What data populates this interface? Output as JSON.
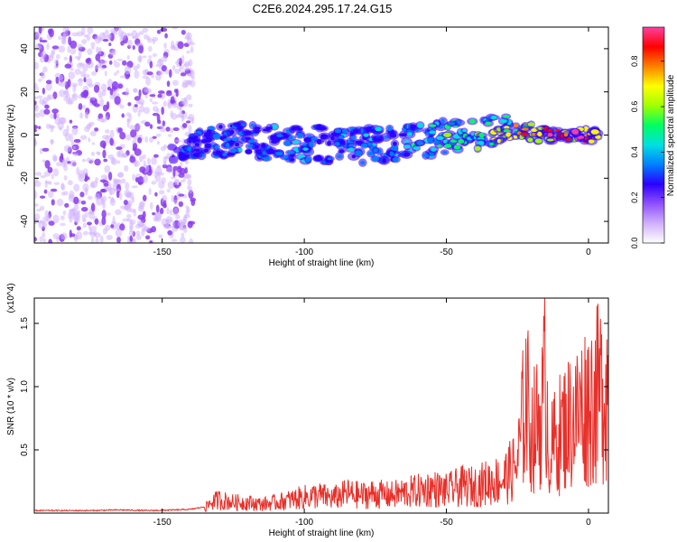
{
  "title": "C2E6.2024.295.17.24.G15",
  "colors": {
    "axis": "#000000",
    "snr_line": "#e8302a",
    "noise_purple": "#8a3cf0",
    "colormap": [
      "#ffffff",
      "#d0b0ff",
      "#9050ff",
      "#2a00ff",
      "#0080ff",
      "#00e0e0",
      "#00ff60",
      "#a0ff00",
      "#ffff00",
      "#ff8000",
      "#ff0000",
      "#ff40a0"
    ]
  },
  "chart_data": [
    {
      "type": "heatmap",
      "title": "C2E6.2024.295.17.24.G15",
      "xlabel": "Height of straight line (km)",
      "ylabel": "Frequency (Hz)",
      "xlim": [
        -195,
        7
      ],
      "ylim": [
        -50,
        50
      ],
      "xticks": [
        -150,
        -100,
        -50,
        0
      ],
      "xtick_labels": [
        "-150",
        "-100",
        "-50",
        "0"
      ],
      "yticks": [
        -40,
        -20,
        0,
        20,
        40
      ],
      "ytick_labels": [
        "-40",
        "-20",
        "0",
        "20",
        "40"
      ],
      "noise_region": {
        "x_from": -195,
        "x_to": -139,
        "y_from": -50,
        "y_to": 50
      },
      "ridge": {
        "x": [
          -147,
          -140,
          -135,
          -130,
          -125,
          -120,
          -115,
          -110,
          -105,
          -100,
          -95,
          -90,
          -85,
          -80,
          -75,
          -70,
          -65,
          -60,
          -55,
          -50,
          -45,
          -40,
          -35,
          -30,
          -25,
          -20,
          -15,
          -10,
          -5,
          0,
          5
        ],
        "center_hz": [
          -9,
          -5,
          -3,
          -3,
          -3,
          -2,
          -3,
          -3,
          -4,
          -4,
          -4,
          -5,
          -4,
          -5,
          -4,
          -4,
          -3,
          -3,
          -2,
          -1,
          0,
          1,
          2,
          3,
          2,
          1,
          0,
          0,
          0,
          0,
          0
        ],
        "width_hz": [
          3,
          5,
          7,
          7,
          8,
          8,
          8,
          8,
          8,
          8,
          8,
          8,
          8,
          8,
          8,
          8,
          8,
          8,
          8,
          8,
          8,
          8,
          7,
          6,
          5,
          4,
          3,
          3,
          3,
          3,
          3
        ],
        "amplitude": [
          0.25,
          0.35,
          0.35,
          0.3,
          0.35,
          0.35,
          0.35,
          0.35,
          0.35,
          0.4,
          0.35,
          0.35,
          0.35,
          0.35,
          0.4,
          0.35,
          0.4,
          0.45,
          0.45,
          0.5,
          0.5,
          0.55,
          0.6,
          0.65,
          0.75,
          0.8,
          0.9,
          0.95,
          0.9,
          0.85,
          0.7
        ]
      }
    },
    {
      "type": "colorbar",
      "label": "Normalized spectral amplitude",
      "ylim": [
        0,
        0.95
      ],
      "ticks": [
        0.0,
        0.2,
        0.4,
        0.6,
        0.8
      ],
      "tick_labels": [
        "0.0",
        "0.2",
        "0.4",
        "0.6",
        "0.8"
      ]
    },
    {
      "type": "line",
      "xlabel": "Height of straight line (km)",
      "ylabel": "SNR (10 * v/v)",
      "scale_note": "(x10^4)",
      "xlim": [
        -195,
        7
      ],
      "ylim": [
        0,
        1.7
      ],
      "xticks": [
        -150,
        -100,
        -50,
        0
      ],
      "xtick_labels": [
        "-150",
        "-100",
        "-50",
        "0"
      ],
      "yticks": [
        0.5,
        1.0,
        1.5
      ],
      "ytick_labels": [
        "0.5",
        "1.0",
        "1.5"
      ],
      "series": [
        {
          "x": [
            -195,
            -185,
            -175,
            -165,
            -155,
            -145,
            -140,
            -135,
            -133,
            -130,
            -125,
            -120,
            -115,
            -110,
            -105,
            -100,
            -95,
            -90,
            -85,
            -80,
            -75,
            -70,
            -65,
            -60,
            -55,
            -50,
            -45,
            -40,
            -35,
            -30,
            -25,
            -22,
            -20,
            -18,
            -16,
            -15,
            -14,
            -12,
            -10,
            -8,
            -6,
            -4,
            -2,
            0,
            2,
            4,
            6
          ],
          "y": [
            0.02,
            0.02,
            0.02,
            0.025,
            0.02,
            0.025,
            0.03,
            0.05,
            0.12,
            0.15,
            0.12,
            0.12,
            0.1,
            0.12,
            0.15,
            0.18,
            0.2,
            0.17,
            0.22,
            0.2,
            0.22,
            0.2,
            0.23,
            0.25,
            0.28,
            0.25,
            0.3,
            0.3,
            0.35,
            0.38,
            0.55,
            1.35,
            0.9,
            1.0,
            1.2,
            1.7,
            0.6,
            0.8,
            0.9,
            1.0,
            1.05,
            1.1,
            1.2,
            1.25,
            1.3,
            1.35,
            1.45
          ]
        }
      ]
    }
  ]
}
